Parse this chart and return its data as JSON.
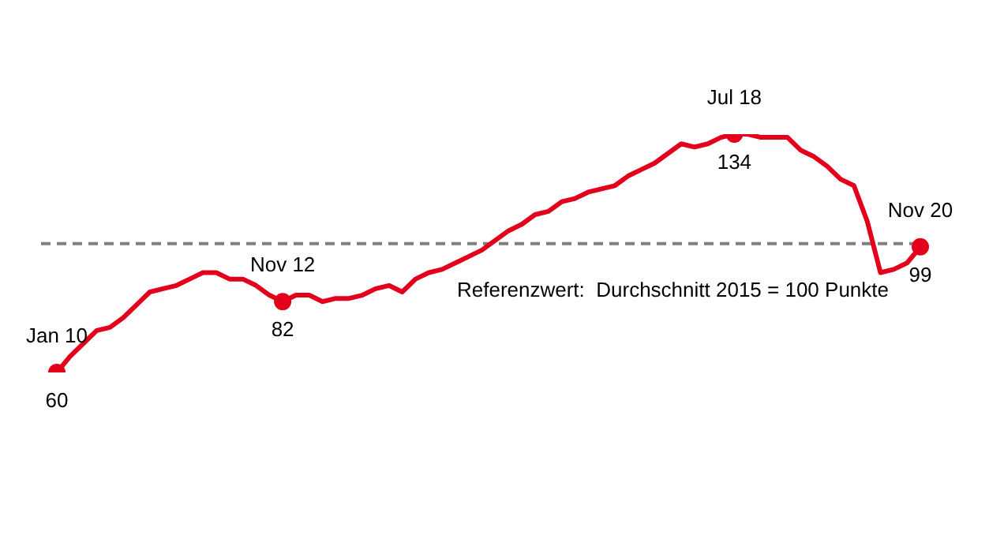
{
  "chart_data": {
    "type": "line",
    "categories": [
      "Jan 10",
      null,
      null,
      null,
      null,
      null,
      null,
      null,
      null,
      null,
      null,
      null,
      null,
      null,
      null,
      null,
      null,
      "Nov 12",
      null,
      null,
      null,
      null,
      null,
      null,
      null,
      null,
      null,
      null,
      null,
      null,
      null,
      null,
      null,
      null,
      null,
      null,
      null,
      null,
      null,
      null,
      null,
      null,
      null,
      null,
      null,
      null,
      null,
      null,
      null,
      null,
      null,
      "Jul 18",
      null,
      null,
      null,
      null,
      null,
      null,
      null,
      null,
      null,
      null,
      null,
      null,
      null,
      "Nov 20"
    ],
    "series": [
      {
        "color": "#e2001a",
        "values": [
          60,
          65,
          69,
          73,
          74,
          77,
          81,
          85,
          86,
          87,
          89,
          91,
          91,
          89,
          89,
          87,
          84,
          82,
          84,
          84,
          82,
          83,
          83,
          84,
          86,
          87,
          85,
          89,
          91,
          92,
          94,
          96,
          98,
          101,
          104,
          106,
          109,
          110,
          113,
          114,
          116,
          117,
          118,
          121,
          123,
          125,
          128,
          131,
          130,
          131,
          133,
          134,
          134,
          133,
          133,
          133,
          129,
          127,
          124,
          120,
          118,
          107,
          91,
          92,
          94,
          99
        ],
        "value_labels": [
          "60",
          null,
          null,
          null,
          null,
          null,
          null,
          null,
          null,
          null,
          null,
          null,
          null,
          null,
          null,
          null,
          null,
          "82",
          null,
          null,
          null,
          null,
          null,
          null,
          null,
          null,
          null,
          null,
          null,
          null,
          null,
          null,
          null,
          null,
          null,
          null,
          null,
          null,
          null,
          null,
          null,
          null,
          null,
          null,
          null,
          null,
          null,
          null,
          null,
          null,
          null,
          "134",
          null,
          null,
          null,
          null,
          null,
          null,
          null,
          null,
          null,
          null,
          null,
          null,
          null,
          "99"
        ]
      }
    ],
    "tick_labels": false,
    "legend": false,
    "ref_lines": [
      {
        "axis": "y",
        "value": 100,
        "label": "Referenzwert:  Durchschnitt 2015 = 100 Punkte",
        "color": "#808080",
        "line_style": "dashed"
      }
    ]
  }
}
